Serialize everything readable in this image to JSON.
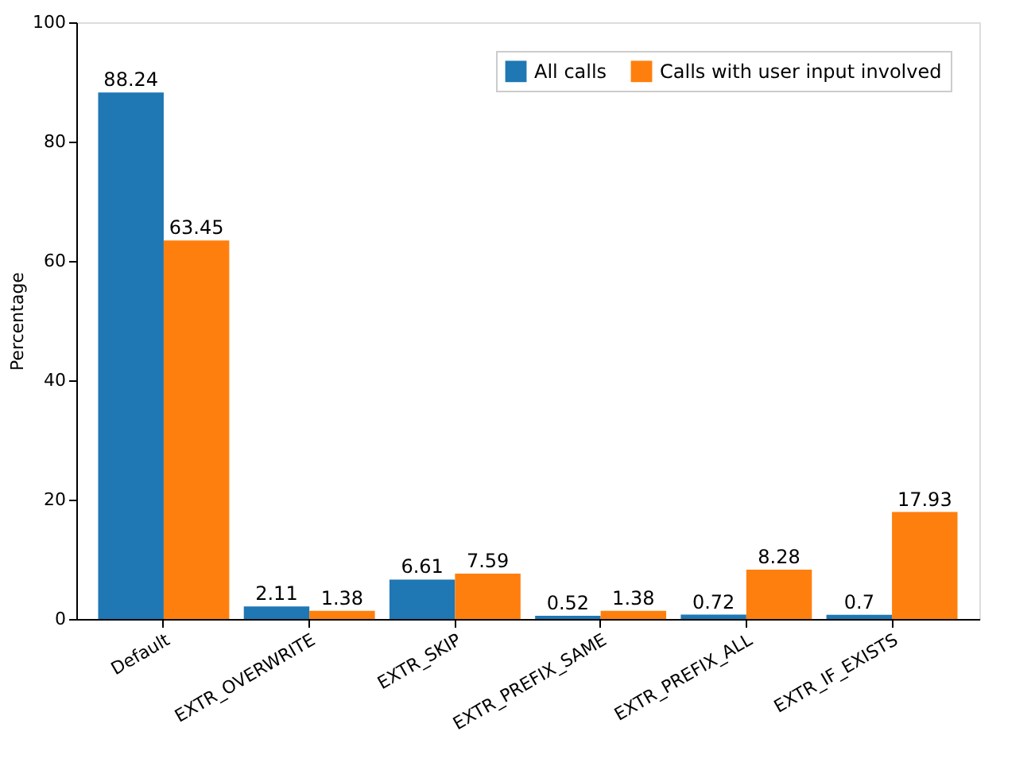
{
  "chart_data": {
    "type": "bar",
    "ylabel": "Percentage",
    "categories": [
      "Default",
      "EXTR_OVERWRITE",
      "EXTR_SKIP",
      "EXTR_PREFIX_SAME",
      "EXTR_PREFIX_ALL",
      "EXTR_IF_EXISTS"
    ],
    "series": [
      {
        "name": "All calls",
        "color": "#1f77b4",
        "values": [
          88.24,
          2.11,
          6.61,
          0.52,
          0.72,
          0.7
        ]
      },
      {
        "name": "Calls with user input involved",
        "color": "#ff7f0e",
        "values": [
          63.45,
          1.38,
          7.59,
          1.38,
          8.28,
          17.93
        ]
      }
    ],
    "ylim": [
      0,
      100
    ],
    "yticks": [
      0,
      20,
      40,
      60,
      80,
      100
    ],
    "grid": false,
    "legend": "top right",
    "data_labels": true
  }
}
